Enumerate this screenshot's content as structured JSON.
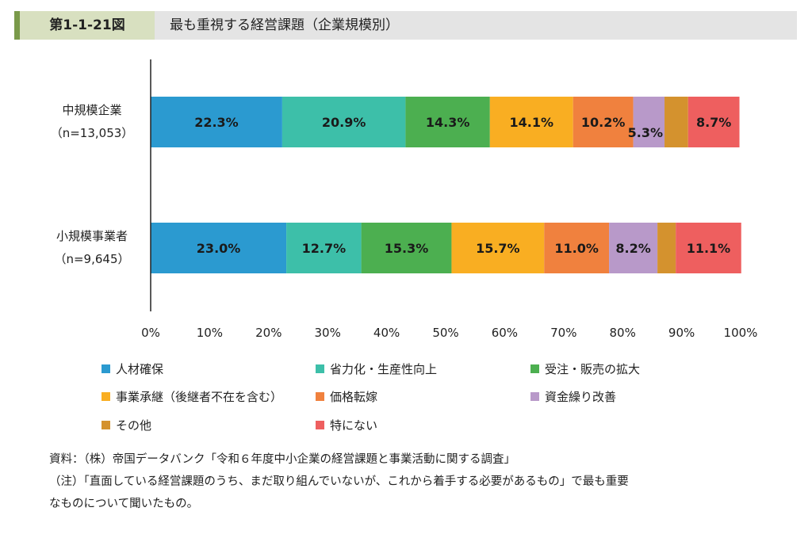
{
  "header": {
    "figure_no": "第1-1-21図",
    "title": "最も重視する経営課題（企業規模別）"
  },
  "chart_data": {
    "type": "bar",
    "orientation": "horizontal",
    "stacked": true,
    "categories": [
      [
        "中規模企業",
        "（n=13,053）"
      ],
      [
        "小規模事業者",
        "（n=9,645）"
      ]
    ],
    "series": [
      {
        "name": "人材確保",
        "color": "#2b9ad0",
        "values": [
          22.3,
          23.0
        ],
        "labels": [
          "22.3%",
          "23.0%"
        ]
      },
      {
        "name": "省力化・生産性向上",
        "color": "#3dbfa9",
        "values": [
          20.9,
          12.7
        ],
        "labels": [
          "20.9%",
          "12.7%"
        ]
      },
      {
        "name": "受注・販売の拡大",
        "color": "#4caf50",
        "values": [
          14.3,
          15.3
        ],
        "labels": [
          "14.3%",
          "15.3%"
        ]
      },
      {
        "name": "事業承継（後継者不在を含む）",
        "color": "#f9ae22",
        "values": [
          14.1,
          15.7
        ],
        "labels": [
          "14.1%",
          "15.7%"
        ]
      },
      {
        "name": "価格転嫁",
        "color": "#f0813e",
        "values": [
          10.2,
          11.0
        ],
        "labels": [
          "10.2%",
          "11.0%"
        ]
      },
      {
        "name": "資金繰り改善",
        "color": "#b899c9",
        "values": [
          5.3,
          8.2
        ],
        "labels": [
          "5.3%",
          "8.2%"
        ]
      },
      {
        "name": "その他",
        "color": "#d4922e",
        "values": [
          4.0,
          3.1
        ],
        "labels": [
          "",
          ""
        ]
      },
      {
        "name": "特にない",
        "color": "#ee5f5f",
        "values": [
          8.7,
          11.1
        ],
        "labels": [
          "8.7%",
          "11.1%"
        ]
      }
    ],
    "xlim": [
      0,
      100
    ],
    "xticks": [
      "0%",
      "10%",
      "20%",
      "30%",
      "40%",
      "50%",
      "60%",
      "70%",
      "80%",
      "90%",
      "100%"
    ],
    "grid": false,
    "legend_position": "bottom"
  },
  "notes": {
    "source": "資料：（株）帝国データバンク「令和６年度中小企業の経営課題と事業活動に関する調査」",
    "note_line1": "（注）「直面している経営課題のうち、まだ取り組んでいないが、これから着手する必要があるもの」で最も重要",
    "note_line2": "なものについて聞いたもの。"
  }
}
